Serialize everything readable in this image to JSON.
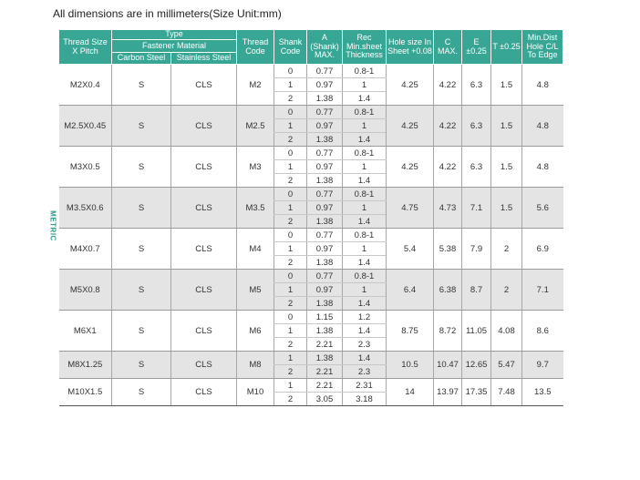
{
  "caption": "All dimensions are in millimeters(Size Unit:mm)",
  "side_label": "METRIC",
  "header": {
    "thread_size": "Thread Size X Pitch",
    "type": "Type",
    "fastener_material": "Fastener Material",
    "carbon_steel": "Carbon Steel",
    "stainless_steel": "Stainless Steel",
    "thread_code": "Thread Code",
    "shank_code": "Shank Code",
    "a": "A (Shank) MAX.",
    "rec": "Rec Min.sheet Thickness",
    "hole": "Hole size In Sheet +0.08",
    "c": "C MAX.",
    "e": "E ±0.25",
    "t": "T ±0.25",
    "min_dist": "Min.Dist Hole C/L To Edge"
  },
  "groups": [
    {
      "size": "M2X0.4",
      "carbon": "S",
      "stainless": "CLS",
      "code": "M2",
      "hole": "4.25",
      "c": "4.22",
      "e": "6.3",
      "t": "1.5",
      "min": "4.8",
      "rows": [
        {
          "shank": "0",
          "a": "0.77",
          "rec": "0.8-1"
        },
        {
          "shank": "1",
          "a": "0.97",
          "rec": "1"
        },
        {
          "shank": "2",
          "a": "1.38",
          "rec": "1.4"
        }
      ]
    },
    {
      "size": "M2.5X0.45",
      "carbon": "S",
      "stainless": "CLS",
      "code": "M2.5",
      "hole": "4.25",
      "c": "4.22",
      "e": "6.3",
      "t": "1.5",
      "min": "4.8",
      "rows": [
        {
          "shank": "0",
          "a": "0.77",
          "rec": "0.8-1"
        },
        {
          "shank": "1",
          "a": "0.97",
          "rec": "1"
        },
        {
          "shank": "2",
          "a": "1.38",
          "rec": "1.4"
        }
      ]
    },
    {
      "size": "M3X0.5",
      "carbon": "S",
      "stainless": "CLS",
      "code": "M3",
      "hole": "4.25",
      "c": "4.22",
      "e": "6.3",
      "t": "1.5",
      "min": "4.8",
      "rows": [
        {
          "shank": "0",
          "a": "0.77",
          "rec": "0.8-1"
        },
        {
          "shank": "1",
          "a": "0.97",
          "rec": "1"
        },
        {
          "shank": "2",
          "a": "1.38",
          "rec": "1.4"
        }
      ]
    },
    {
      "size": "M3.5X0.6",
      "carbon": "S",
      "stainless": "CLS",
      "code": "M3.5",
      "hole": "4.75",
      "c": "4.73",
      "e": "7.1",
      "t": "1.5",
      "min": "5.6",
      "rows": [
        {
          "shank": "0",
          "a": "0.77",
          "rec": "0.8-1"
        },
        {
          "shank": "1",
          "a": "0.97",
          "rec": "1"
        },
        {
          "shank": "2",
          "a": "1.38",
          "rec": "1.4"
        }
      ]
    },
    {
      "size": "M4X0.7",
      "carbon": "S",
      "stainless": "CLS",
      "code": "M4",
      "hole": "5.4",
      "c": "5.38",
      "e": "7.9",
      "t": "2",
      "min": "6.9",
      "rows": [
        {
          "shank": "0",
          "a": "0.77",
          "rec": "0.8-1"
        },
        {
          "shank": "1",
          "a": "0.97",
          "rec": "1"
        },
        {
          "shank": "2",
          "a": "1.38",
          "rec": "1.4"
        }
      ]
    },
    {
      "size": "M5X0.8",
      "carbon": "S",
      "stainless": "CLS",
      "code": "M5",
      "hole": "6.4",
      "c": "6.38",
      "e": "8.7",
      "t": "2",
      "min": "7.1",
      "rows": [
        {
          "shank": "0",
          "a": "0.77",
          "rec": "0.8-1"
        },
        {
          "shank": "1",
          "a": "0.97",
          "rec": "1"
        },
        {
          "shank": "2",
          "a": "1.38",
          "rec": "1.4"
        }
      ]
    },
    {
      "size": "M6X1",
      "carbon": "S",
      "stainless": "CLS",
      "code": "M6",
      "hole": "8.75",
      "c": "8.72",
      "e": "11.05",
      "t": "4.08",
      "min": "8.6",
      "rows": [
        {
          "shank": "0",
          "a": "1.15",
          "rec": "1.2"
        },
        {
          "shank": "1",
          "a": "1.38",
          "rec": "1.4"
        },
        {
          "shank": "2",
          "a": "2.21",
          "rec": "2.3"
        }
      ]
    },
    {
      "size": "M8X1.25",
      "carbon": "S",
      "stainless": "CLS",
      "code": "M8",
      "hole": "10.5",
      "c": "10.47",
      "e": "12.65",
      "t": "5.47",
      "min": "9.7",
      "rows": [
        {
          "shank": "1",
          "a": "1.38",
          "rec": "1.4"
        },
        {
          "shank": "2",
          "a": "2.21",
          "rec": "2.3"
        }
      ]
    },
    {
      "size": "M10X1.5",
      "carbon": "S",
      "stainless": "CLS",
      "code": "M10",
      "hole": "14",
      "c": "13.97",
      "e": "17.35",
      "t": "7.48",
      "min": "13.5",
      "rows": [
        {
          "shank": "1",
          "a": "2.21",
          "rec": "2.31"
        },
        {
          "shank": "2",
          "a": "3.05",
          "rec": "3.18"
        }
      ]
    }
  ]
}
